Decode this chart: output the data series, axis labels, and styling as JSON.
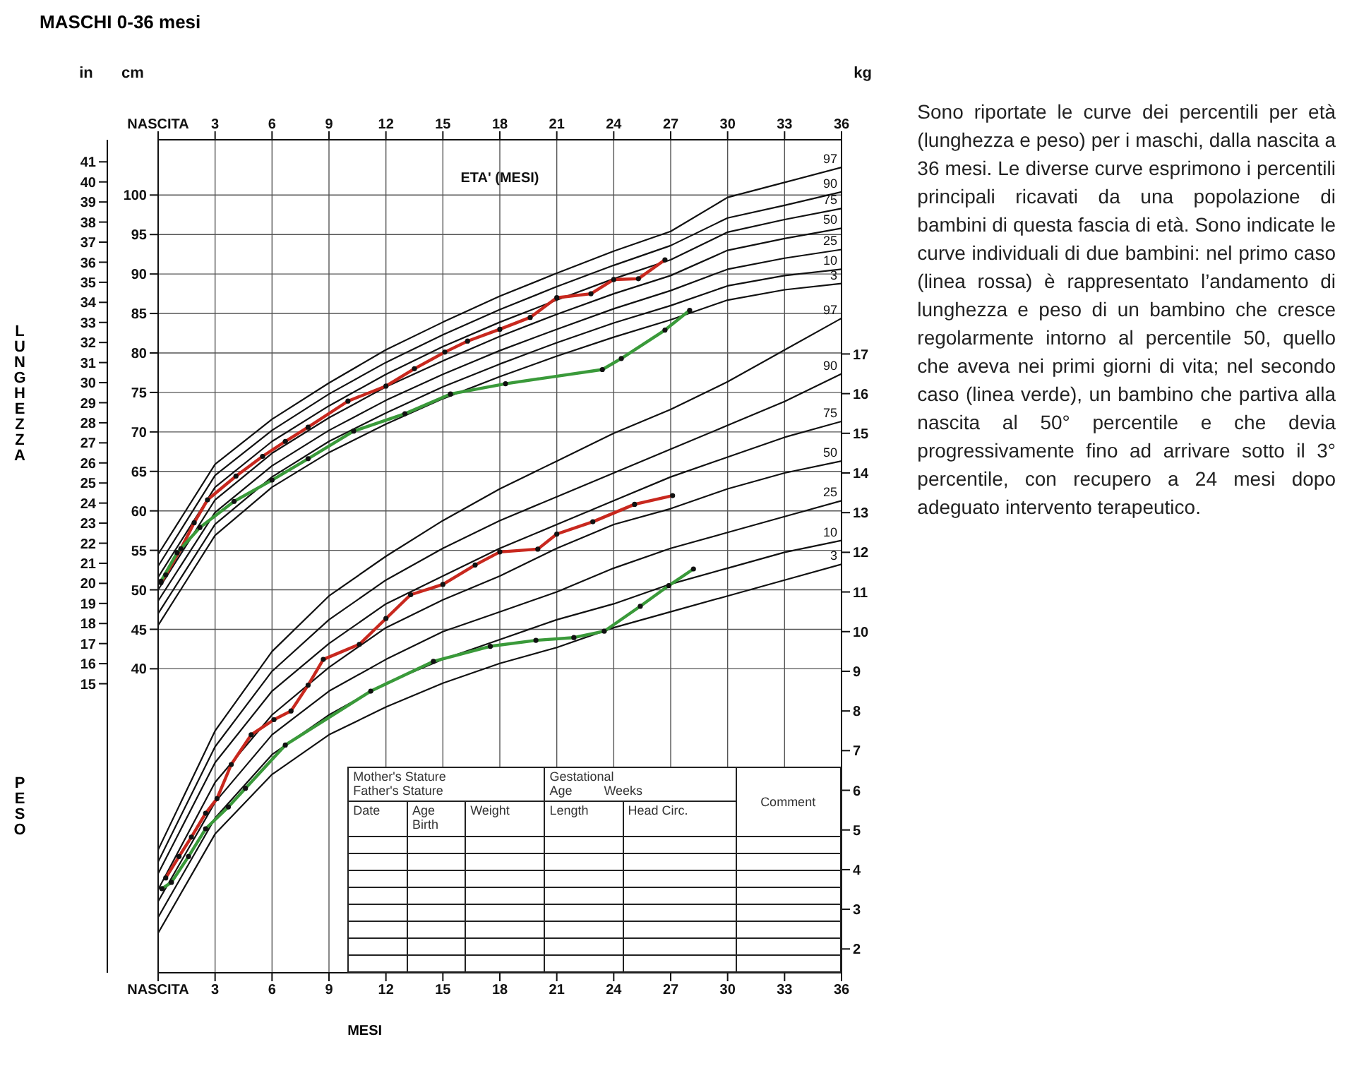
{
  "chart_data": {
    "type": "line",
    "title": "MASCHI 0-36 mesi",
    "xlabel": "ETA' (MESI)",
    "ylabel": "cm",
    "y3label": "in",
    "y2label": "kg",
    "x": [
      0,
      3,
      6,
      9,
      12,
      15,
      18,
      21,
      24,
      27,
      30,
      33,
      36
    ],
    "xlim": [
      0,
      36
    ],
    "xticks": [
      {
        "value": 0,
        "label": "NASCITA"
      },
      3,
      6,
      9,
      12,
      15,
      18,
      21,
      24,
      27,
      30,
      33,
      36
    ],
    "x2lim": [
      0,
      36
    ],
    "x2ticks": [
      {
        "value": 0,
        "label": "NASCITA"
      },
      3,
      6,
      9,
      12,
      15,
      18,
      21,
      24,
      27,
      30,
      33,
      36
    ],
    "ylim": [
      1.5,
      107
    ],
    "yticks": [
      40,
      45,
      50,
      55,
      60,
      65,
      70,
      75,
      80,
      85,
      90,
      95,
      100
    ],
    "y3lim": [
      0.6,
      42.1
    ],
    "y3ticks": [
      15,
      16,
      17,
      18,
      19,
      20,
      21,
      22,
      23,
      24,
      25,
      26,
      27,
      28,
      29,
      30,
      31,
      32,
      33,
      34,
      35,
      36,
      37,
      38,
      39,
      40,
      41
    ],
    "y2lim": [
      1.4,
      22.4
    ],
    "y2ticks": [
      2,
      3,
      4,
      5,
      6,
      7,
      8,
      9,
      10,
      11,
      12,
      13,
      14,
      15,
      16,
      17
    ],
    "grid": true,
    "marker": "none",
    "series": [
      {
        "name": "3",
        "color": "#111111",
        "values": [
          45.5,
          56.9,
          63.0,
          67.4,
          71.0,
          74.2,
          77.0,
          79.6,
          82.0,
          84.2,
          86.7,
          88.0,
          88.8
        ]
      },
      {
        "name": "10",
        "color": "#111111",
        "values": [
          47.0,
          58.3,
          64.3,
          68.8,
          72.4,
          75.7,
          78.6,
          81.3,
          83.8,
          86.0,
          88.5,
          89.8,
          90.6
        ]
      },
      {
        "name": "25",
        "color": "#111111",
        "values": [
          48.6,
          59.8,
          65.7,
          70.2,
          74.0,
          77.3,
          80.3,
          83.0,
          85.6,
          87.9,
          90.6,
          92.0,
          93.1
        ]
      },
      {
        "name": "50",
        "color": "#111111",
        "values": [
          50.0,
          61.4,
          67.3,
          71.8,
          75.7,
          79.0,
          82.1,
          84.9,
          87.5,
          89.8,
          93.0,
          94.5,
          95.8
        ]
      },
      {
        "name": "75",
        "color": "#111111",
        "values": [
          51.6,
          63.0,
          68.8,
          73.3,
          77.3,
          80.8,
          83.9,
          86.7,
          89.4,
          91.8,
          95.3,
          96.9,
          98.3
        ]
      },
      {
        "name": "90",
        "color": "#111111",
        "values": [
          53.0,
          64.5,
          70.2,
          74.8,
          78.8,
          82.3,
          85.5,
          88.4,
          91.1,
          93.6,
          97.1,
          98.7,
          100.4
        ]
      },
      {
        "name": "97",
        "color": "#111111",
        "values": [
          54.5,
          65.9,
          71.6,
          76.2,
          80.4,
          83.9,
          87.2,
          90.1,
          92.9,
          95.4,
          99.7,
          101.6,
          103.5
        ]
      },
      {
        "name": "3",
        "color": "#111111",
        "axis": "y2",
        "values": [
          2.4,
          4.9,
          6.4,
          7.4,
          8.1,
          8.7,
          9.2,
          9.6,
          10.1,
          10.5,
          10.9,
          11.3,
          11.7
        ]
      },
      {
        "name": "10",
        "color": "#111111",
        "axis": "y2",
        "values": [
          2.8,
          5.3,
          6.9,
          7.9,
          8.7,
          9.3,
          9.8,
          10.3,
          10.7,
          11.2,
          11.6,
          12.0,
          12.3
        ]
      },
      {
        "name": "25",
        "color": "#111111",
        "axis": "y2",
        "values": [
          3.2,
          5.7,
          7.4,
          8.5,
          9.3,
          10.0,
          10.5,
          11.0,
          11.6,
          12.1,
          12.5,
          12.9,
          13.3
        ]
      },
      {
        "name": "50",
        "color": "#111111",
        "axis": "y2",
        "values": [
          3.5,
          6.2,
          7.9,
          9.1,
          10.1,
          10.8,
          11.4,
          12.1,
          12.7,
          13.1,
          13.6,
          14.0,
          14.3
        ]
      },
      {
        "name": "75",
        "color": "#111111",
        "axis": "y2",
        "values": [
          3.9,
          6.7,
          8.5,
          9.7,
          10.7,
          11.4,
          12.1,
          12.7,
          13.3,
          13.9,
          14.4,
          14.9,
          15.3
        ]
      },
      {
        "name": "90",
        "color": "#111111",
        "axis": "y2",
        "values": [
          4.2,
          7.1,
          9.0,
          10.3,
          11.3,
          12.1,
          12.8,
          13.4,
          14.0,
          14.6,
          15.2,
          15.8,
          16.5
        ]
      },
      {
        "name": "97",
        "color": "#111111",
        "axis": "y2",
        "values": [
          4.5,
          7.5,
          9.5,
          10.9,
          11.9,
          12.8,
          13.6,
          14.3,
          15.0,
          15.6,
          16.3,
          17.1,
          17.9
        ]
      },
      {
        "color": "#c8281e",
        "marker": "circle",
        "x": [
          0.15,
          0.4,
          1.2,
          1.9,
          2.6,
          4.1,
          5.5,
          6.7,
          7.9,
          10.0,
          12.0,
          13.5,
          15.1,
          16.3,
          18.0,
          19.6,
          21.0,
          22.8,
          24.0,
          25.3,
          26.7
        ],
        "values": [
          50.9,
          51.9,
          55.2,
          58.5,
          61.4,
          64.4,
          66.9,
          68.8,
          70.6,
          73.9,
          75.8,
          78.0,
          80.1,
          81.5,
          83.0,
          84.5,
          87.0,
          87.5,
          89.3,
          89.4,
          91.8
        ]
      },
      {
        "color": "#3a9a3a",
        "marker": "circle",
        "x": [
          0.15,
          1.0,
          2.2,
          4.0,
          6.0,
          7.9,
          10.3,
          13.0,
          15.4,
          18.3,
          23.4,
          24.4,
          26.7,
          28.0
        ],
        "values": [
          51.1,
          54.7,
          57.9,
          61.2,
          63.9,
          66.6,
          70.1,
          72.3,
          74.8,
          76.1,
          77.9,
          79.3,
          82.9,
          85.4
        ]
      },
      {
        "color": "#c8281e",
        "marker": "circle",
        "axis": "y2",
        "x": [
          0.4,
          1.1,
          1.75,
          2.5,
          3.1,
          3.85,
          4.9,
          6.1,
          7.0,
          7.9,
          8.7,
          10.6,
          12.0,
          13.3,
          15.0,
          16.7,
          18.0,
          20.0,
          21.0,
          22.9,
          25.1,
          27.1
        ],
        "values": [
          3.79,
          4.33,
          4.82,
          5.42,
          5.79,
          6.65,
          7.4,
          7.78,
          8.0,
          8.65,
          9.3,
          9.68,
          10.33,
          10.93,
          11.19,
          11.68,
          12.01,
          12.08,
          12.46,
          12.77,
          13.21,
          13.43
        ]
      },
      {
        "color": "#3a9a3a",
        "marker": "circle",
        "axis": "y2",
        "x": [
          0.2,
          0.7,
          1.6,
          2.5,
          3.7,
          4.6,
          6.7,
          11.2,
          14.5,
          17.5,
          19.9,
          21.9,
          23.5,
          25.4,
          26.9,
          28.2
        ],
        "values": [
          3.52,
          3.68,
          4.33,
          5.03,
          5.58,
          6.05,
          7.14,
          8.5,
          9.25,
          9.63,
          9.78,
          9.85,
          10.01,
          10.64,
          11.16,
          11.58
        ]
      }
    ],
    "annotations": [
      "LUNGHEZZA",
      "PESO",
      "MESI",
      "Sono riportate le curve dei percentili per età (lunghezza e peso) per i maschi, dalla nascita a 36 mesi. Le diverse curve esprimono i percentili principali ricavati da una popolazione di bambini di questa fascia di età. Sono indicate le curve individuali di due bambini: nel primo caso (linea rossa) è rappresentato l’andamento di lunghezza e peso di un bambino che cresce regolarmente intorno al percentile 50, quello che aveva nei primi giorni di vita; nel secondo caso (linea verde), un bambino che partiva alla nascita al 50° percentile e che devia progressivamente fino ad arrivare sotto il 3° percentile, con recupero a 24 mesi dopo adeguato intervento terapeutico.",
      "Mother's Stature",
      "Father's Stature",
      "Gestational",
      "Age",
      "Weeks",
      "Comment",
      "Date",
      "Age",
      "Birth",
      "Weight",
      "Length",
      "Head Circ."
    ]
  }
}
